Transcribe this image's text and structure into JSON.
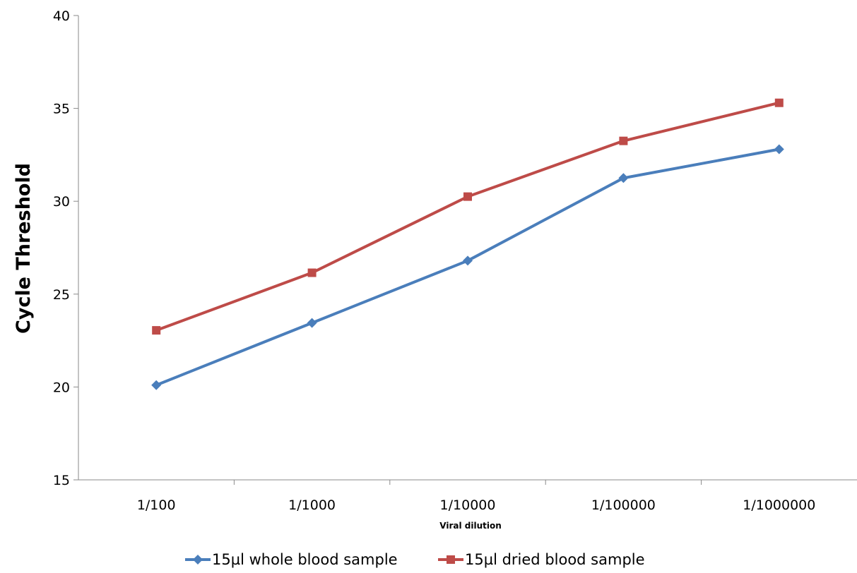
{
  "chart_data": {
    "type": "line",
    "categories": [
      "1/100",
      "1/1000",
      "1/10000",
      "1/100000",
      "1/1000000"
    ],
    "series": [
      {
        "name": "15µl whole blood sample",
        "values": [
          20.1,
          23.45,
          26.8,
          31.25,
          32.8
        ],
        "color": "#4a7ebb",
        "marker": "diamond"
      },
      {
        "name": "15µl dried blood sample",
        "values": [
          23.05,
          26.15,
          30.25,
          33.25,
          35.3
        ],
        "color": "#be4b48",
        "marker": "square"
      }
    ],
    "xlabel": "Viral dilution",
    "ylabel": "Cycle Threshold",
    "ylim": [
      15,
      40
    ],
    "yticks": [
      "15",
      "20",
      "25",
      "30",
      "35",
      "40"
    ],
    "grid": false,
    "legend": "bottom"
  }
}
